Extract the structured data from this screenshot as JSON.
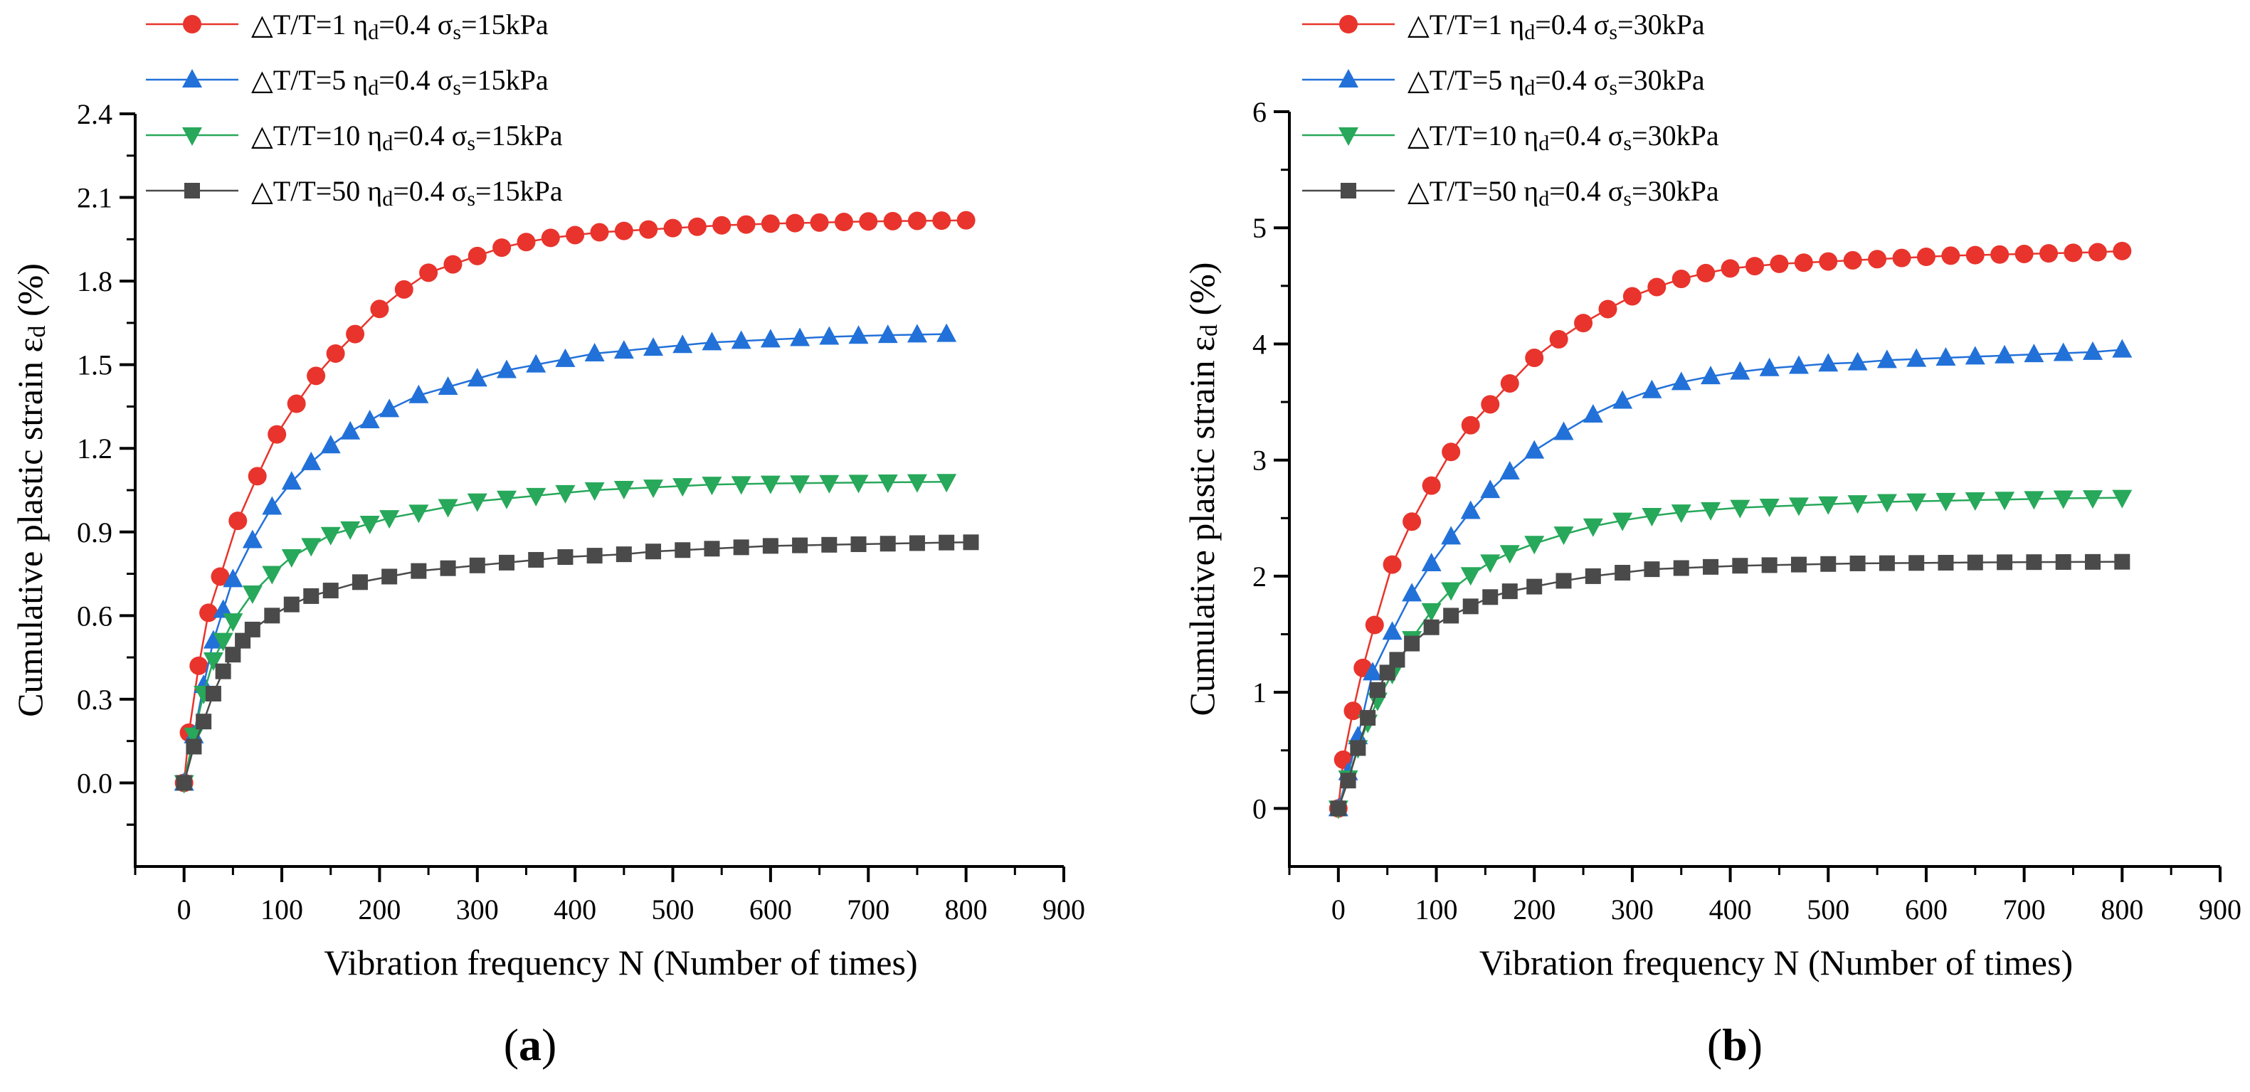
{
  "colors": {
    "dT1": "#e8342c",
    "dT5": "#2271d9",
    "dT10": "#27a85a",
    "dT50": "#4a4a4a",
    "axis": "#000000"
  },
  "chart_data": [
    {
      "type": "line",
      "panel_label": {
        "open": "(",
        "letter": "a",
        "close": ")"
      },
      "xlabel": "Vibration frequency N (Number of times)",
      "ylabel": {
        "main": "Cumulative plastic strain ε",
        "sub": "d",
        "suffix": " (%)"
      },
      "xlim": [
        -50,
        900
      ],
      "ylim": [
        -0.3,
        2.4
      ],
      "xticks": [
        0,
        100,
        200,
        300,
        400,
        500,
        600,
        700,
        800,
        900
      ],
      "yticks": [
        0.0,
        0.3,
        0.6,
        0.9,
        1.2,
        1.5,
        1.8,
        2.1,
        2.4
      ],
      "ytick_labels": [
        "0.0",
        "0.3",
        "0.6",
        "0.9",
        "1.2",
        "1.5",
        "1.8",
        "2.1",
        "2.4"
      ],
      "series": [
        {
          "name": "dT1",
          "marker": "circle",
          "legend": {
            "a": "△T/T=1 η",
            "b": "d",
            "c": "=0.4 σ",
            "d": "s",
            "e": "=15kPa"
          },
          "x": [
            0,
            5,
            15,
            25,
            37,
            55,
            75,
            95,
            115,
            135,
            155,
            175,
            200,
            225,
            250,
            275,
            300,
            325,
            350,
            375,
            400,
            425,
            450,
            475,
            500,
            525,
            550,
            575,
            600,
            625,
            650,
            675,
            700,
            725,
            750,
            775,
            800
          ],
          "y": [
            0.0,
            0.18,
            0.42,
            0.61,
            0.74,
            0.94,
            1.1,
            1.25,
            1.36,
            1.46,
            1.54,
            1.61,
            1.7,
            1.77,
            1.83,
            1.86,
            1.89,
            1.92,
            1.94,
            1.955,
            1.965,
            1.975,
            1.98,
            1.985,
            1.99,
            1.995,
            2.0,
            2.003,
            2.006,
            2.008,
            2.01,
            2.012,
            2.014,
            2.015,
            2.016,
            2.017,
            2.018
          ]
        },
        {
          "name": "dT5",
          "marker": "triangle-up",
          "legend": {
            "a": "△T/T=5 η",
            "b": "d",
            "c": "=0.4 σ",
            "d": "s",
            "e": "=15kPa"
          },
          "x": [
            0,
            10,
            20,
            30,
            40,
            50,
            70,
            90,
            110,
            130,
            150,
            170,
            190,
            210,
            240,
            270,
            300,
            330,
            360,
            390,
            420,
            450,
            480,
            510,
            540,
            570,
            600,
            630,
            660,
            690,
            720,
            750,
            780
          ],
          "y": [
            0.0,
            0.17,
            0.35,
            0.51,
            0.62,
            0.73,
            0.87,
            0.99,
            1.08,
            1.15,
            1.21,
            1.26,
            1.3,
            1.34,
            1.39,
            1.42,
            1.45,
            1.48,
            1.5,
            1.52,
            1.54,
            1.55,
            1.56,
            1.57,
            1.58,
            1.585,
            1.59,
            1.595,
            1.6,
            1.603,
            1.606,
            1.608,
            1.61
          ]
        },
        {
          "name": "dT10",
          "marker": "triangle-down",
          "legend": {
            "a": "△T/T=10 η",
            "b": "d",
            "c": "=0.4 σ",
            "d": "s",
            "e": "=15kPa"
          },
          "x": [
            0,
            10,
            20,
            30,
            40,
            50,
            70,
            90,
            110,
            130,
            150,
            170,
            190,
            210,
            240,
            270,
            300,
            330,
            360,
            390,
            420,
            450,
            480,
            510,
            540,
            570,
            600,
            630,
            660,
            690,
            720,
            750,
            780
          ],
          "y": [
            0.0,
            0.17,
            0.32,
            0.44,
            0.51,
            0.58,
            0.68,
            0.75,
            0.81,
            0.85,
            0.89,
            0.91,
            0.93,
            0.95,
            0.97,
            0.99,
            1.01,
            1.02,
            1.03,
            1.04,
            1.05,
            1.055,
            1.06,
            1.065,
            1.07,
            1.072,
            1.074,
            1.075,
            1.076,
            1.077,
            1.078,
            1.079,
            1.08
          ]
        },
        {
          "name": "dT50",
          "marker": "square",
          "legend": {
            "a": "△T/T=50 η",
            "b": "d",
            "c": "=0.4 σ",
            "d": "s",
            "e": "=15kPa"
          },
          "x": [
            0,
            10,
            20,
            30,
            40,
            50,
            60,
            70,
            90,
            110,
            130,
            150,
            180,
            210,
            240,
            270,
            300,
            330,
            360,
            390,
            420,
            450,
            480,
            510,
            540,
            570,
            600,
            630,
            660,
            690,
            720,
            750,
            780,
            805
          ],
          "y": [
            0.0,
            0.13,
            0.22,
            0.32,
            0.4,
            0.46,
            0.51,
            0.55,
            0.6,
            0.64,
            0.67,
            0.69,
            0.72,
            0.74,
            0.76,
            0.77,
            0.78,
            0.79,
            0.8,
            0.81,
            0.815,
            0.82,
            0.83,
            0.835,
            0.84,
            0.845,
            0.85,
            0.852,
            0.854,
            0.856,
            0.858,
            0.86,
            0.862,
            0.863
          ]
        }
      ]
    },
    {
      "type": "line",
      "panel_label": {
        "open": "(",
        "letter": "b",
        "close": ")"
      },
      "xlabel": "Vibration frequency N (Number of times)",
      "ylabel": {
        "main": "Cumulative plastic strain ε",
        "sub": "d",
        "suffix": " (%)"
      },
      "xlim": [
        -50,
        900
      ],
      "ylim": [
        -0.5,
        6
      ],
      "xticks": [
        0,
        100,
        200,
        300,
        400,
        500,
        600,
        700,
        800,
        900
      ],
      "yticks": [
        0,
        1,
        2,
        3,
        4,
        5,
        6
      ],
      "ytick_labels": [
        "0",
        "1",
        "2",
        "3",
        "4",
        "5",
        "6"
      ],
      "series": [
        {
          "name": "dT1",
          "marker": "circle",
          "legend": {
            "a": "△T/T=1 η",
            "b": "d",
            "c": "=0.4 σ",
            "d": "s",
            "e": "=30kPa"
          },
          "x": [
            0,
            5,
            15,
            25,
            37,
            55,
            75,
            95,
            115,
            135,
            155,
            175,
            200,
            225,
            250,
            275,
            300,
            325,
            350,
            375,
            400,
            425,
            450,
            475,
            500,
            525,
            550,
            575,
            600,
            625,
            650,
            675,
            700,
            725,
            750,
            775,
            800
          ],
          "y": [
            0.0,
            0.42,
            0.84,
            1.21,
            1.58,
            2.1,
            2.47,
            2.78,
            3.07,
            3.3,
            3.48,
            3.66,
            3.88,
            4.04,
            4.18,
            4.3,
            4.41,
            4.49,
            4.56,
            4.61,
            4.65,
            4.67,
            4.69,
            4.7,
            4.71,
            4.72,
            4.73,
            4.74,
            4.75,
            4.76,
            4.765,
            4.77,
            4.775,
            4.78,
            4.785,
            4.79,
            4.8
          ]
        },
        {
          "name": "dT5",
          "marker": "triangle-up",
          "legend": {
            "a": "△T/T=5 η",
            "b": "d",
            "c": "=0.4 σ",
            "d": "s",
            "e": "=30kPa"
          },
          "x": [
            0,
            10,
            20,
            35,
            55,
            75,
            95,
            115,
            135,
            155,
            175,
            200,
            230,
            260,
            290,
            320,
            350,
            380,
            410,
            440,
            470,
            500,
            530,
            560,
            590,
            620,
            650,
            680,
            710,
            740,
            770,
            800
          ],
          "y": [
            0.0,
            0.31,
            0.62,
            1.17,
            1.52,
            1.85,
            2.11,
            2.34,
            2.56,
            2.74,
            2.9,
            3.08,
            3.24,
            3.39,
            3.51,
            3.6,
            3.67,
            3.72,
            3.76,
            3.79,
            3.81,
            3.83,
            3.84,
            3.86,
            3.87,
            3.88,
            3.89,
            3.9,
            3.91,
            3.92,
            3.93,
            3.95
          ]
        },
        {
          "name": "dT10",
          "marker": "triangle-down",
          "legend": {
            "a": "△T/T=10 η",
            "b": "d",
            "c": "=0.4 σ",
            "d": "s",
            "e": "=30kPa"
          },
          "x": [
            0,
            10,
            20,
            30,
            40,
            55,
            75,
            95,
            115,
            135,
            155,
            175,
            200,
            230,
            260,
            290,
            320,
            350,
            380,
            410,
            440,
            470,
            500,
            530,
            560,
            590,
            620,
            650,
            680,
            710,
            740,
            770,
            800
          ],
          "y": [
            0.0,
            0.26,
            0.52,
            0.74,
            0.93,
            1.16,
            1.46,
            1.7,
            1.88,
            2.01,
            2.12,
            2.2,
            2.28,
            2.36,
            2.43,
            2.48,
            2.52,
            2.55,
            2.57,
            2.59,
            2.6,
            2.61,
            2.62,
            2.63,
            2.64,
            2.645,
            2.65,
            2.655,
            2.66,
            2.665,
            2.67,
            2.673,
            2.676
          ]
        },
        {
          "name": "dT50",
          "marker": "square",
          "legend": {
            "a": "△T/T=50 η",
            "b": "d",
            "c": "=0.4 σ",
            "d": "s",
            "e": "=30kPa"
          },
          "x": [
            0,
            10,
            20,
            30,
            40,
            50,
            60,
            75,
            95,
            115,
            135,
            155,
            175,
            200,
            230,
            260,
            290,
            320,
            350,
            380,
            410,
            440,
            470,
            500,
            530,
            560,
            590,
            620,
            650,
            680,
            710,
            740,
            770,
            800
          ],
          "y": [
            0.0,
            0.24,
            0.52,
            0.78,
            1.02,
            1.17,
            1.28,
            1.42,
            1.56,
            1.66,
            1.74,
            1.82,
            1.87,
            1.91,
            1.96,
            2.0,
            2.03,
            2.06,
            2.07,
            2.08,
            2.09,
            2.095,
            2.1,
            2.105,
            2.11,
            2.112,
            2.114,
            2.116,
            2.118,
            2.12,
            2.121,
            2.122,
            2.123,
            2.124
          ]
        }
      ]
    }
  ]
}
